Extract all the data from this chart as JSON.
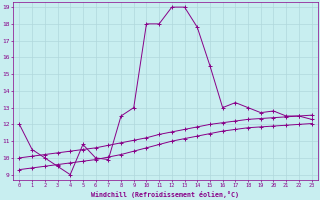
{
  "xlabel": "Windchill (Refroidissement éolien,°C)",
  "bg_color": "#c8eef0",
  "grid_color": "#b0d8dc",
  "line_color": "#880088",
  "xmin": 0,
  "xmax": 23,
  "ymin": 9,
  "ymax": 19,
  "line1_x": [
    0,
    1,
    2,
    3,
    4,
    5,
    6,
    7,
    8,
    9,
    10,
    11,
    12,
    13,
    14,
    15,
    16,
    17,
    18,
    19,
    20,
    21,
    22,
    23
  ],
  "line1_y": [
    12.0,
    10.5,
    10.0,
    9.5,
    9.0,
    10.8,
    10.0,
    9.9,
    12.5,
    13.0,
    18.0,
    18.0,
    19.0,
    19.0,
    17.8,
    15.5,
    13.0,
    13.3,
    13.0,
    12.7,
    12.8,
    12.5,
    12.5,
    12.3
  ],
  "line2_x": [
    0,
    1,
    2,
    3,
    4,
    5,
    6,
    7,
    8,
    9,
    10,
    11,
    12,
    13,
    14,
    15,
    16,
    17,
    18,
    19,
    20,
    21,
    22,
    23
  ],
  "line2_y": [
    10.0,
    10.1,
    10.2,
    10.3,
    10.4,
    10.5,
    10.6,
    10.75,
    10.9,
    11.05,
    11.2,
    11.4,
    11.55,
    11.7,
    11.85,
    12.0,
    12.1,
    12.2,
    12.3,
    12.35,
    12.4,
    12.45,
    12.5,
    12.55
  ],
  "line3_x": [
    0,
    1,
    2,
    3,
    4,
    5,
    6,
    7,
    8,
    9,
    10,
    11,
    12,
    13,
    14,
    15,
    16,
    17,
    18,
    19,
    20,
    21,
    22,
    23
  ],
  "line3_y": [
    9.3,
    9.4,
    9.5,
    9.6,
    9.7,
    9.8,
    9.9,
    10.05,
    10.2,
    10.4,
    10.6,
    10.8,
    11.0,
    11.15,
    11.3,
    11.45,
    11.6,
    11.7,
    11.8,
    11.85,
    11.9,
    11.95,
    12.0,
    12.05
  ]
}
